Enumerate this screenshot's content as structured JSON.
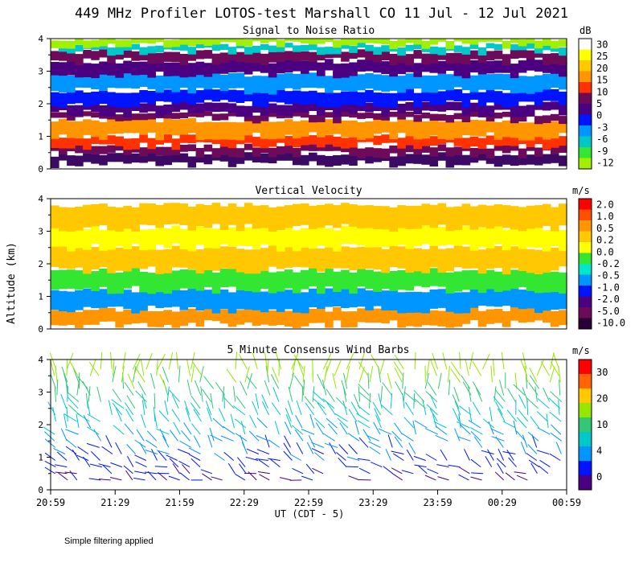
{
  "figure": {
    "title": "449 MHz Profiler LOTOS-test Marshall CO 11 Jul - 12 Jul 2021",
    "footnote": "Simple filtering applied",
    "shared_ylabel": "Altitude (km)"
  },
  "chart_data": [
    {
      "type": "heatmap",
      "title": "Signal to Noise Ratio",
      "xlabel": "",
      "ylabel": "",
      "ylim": [
        0,
        4
      ],
      "yticks": [
        "0",
        "1",
        "2",
        "3",
        "4"
      ],
      "colorbar": {
        "unit": "dB",
        "labels": [
          "30",
          "25",
          "20",
          "15",
          "10",
          "5",
          "0",
          "-3",
          "-6",
          "-9",
          "-12"
        ],
        "colors": [
          "#ffffff",
          "#ffff00",
          "#ffc800",
          "#ff9600",
          "#ff3200",
          "#6e0a5a",
          "#4b0082",
          "#0014ff",
          "#0096ff",
          "#00c8c8",
          "#32e632",
          "#a0f000"
        ]
      },
      "bands": [
        {
          "from": 0.15,
          "to": 0.45,
          "color": "#3c0a64"
        },
        {
          "from": 0.45,
          "to": 0.7,
          "color": "#6e0a5a"
        },
        {
          "from": 0.7,
          "to": 1.0,
          "color": "#ff3200"
        },
        {
          "from": 1.0,
          "to": 1.5,
          "color": "#ff9600"
        },
        {
          "from": 1.5,
          "to": 1.7,
          "color": "#6e0a5a"
        },
        {
          "from": 1.7,
          "to": 2.0,
          "color": "#4b0082"
        },
        {
          "from": 2.0,
          "to": 2.4,
          "color": "#0014ff"
        },
        {
          "from": 2.4,
          "to": 2.9,
          "color": "#0096ff"
        },
        {
          "from": 2.9,
          "to": 3.3,
          "color": "#4b0082"
        },
        {
          "from": 3.3,
          "to": 3.6,
          "color": "#6e0a5a"
        },
        {
          "from": 3.6,
          "to": 3.8,
          "color": "#00c8c8"
        },
        {
          "from": 3.8,
          "to": 4.0,
          "color": "#a0f000"
        }
      ]
    },
    {
      "type": "heatmap",
      "title": "Vertical Velocity",
      "xlabel": "",
      "ylabel": "Altitude (km)",
      "ylim": [
        0,
        4
      ],
      "yticks": [
        "0",
        "1",
        "2",
        "3",
        "4"
      ],
      "colorbar": {
        "unit": "m/s",
        "labels": [
          "2.0",
          "1.0",
          "0.5",
          "0.2",
          "0.0",
          "-0.2",
          "-0.5",
          "-1.0",
          "-2.0",
          "-5.0",
          "-10.0"
        ],
        "colors": [
          "#ff0000",
          "#ff5000",
          "#ff9600",
          "#ffc800",
          "#ffff00",
          "#32e632",
          "#00e6c8",
          "#0096ff",
          "#0014ff",
          "#4b0082",
          "#6e0a5a",
          "#2a0038"
        ]
      },
      "bands": [
        {
          "from": 0.15,
          "to": 0.6,
          "color": "#ff9600"
        },
        {
          "from": 0.6,
          "to": 1.2,
          "color": "#0096ff"
        },
        {
          "from": 1.2,
          "to": 1.8,
          "color": "#32e632"
        },
        {
          "from": 1.8,
          "to": 2.5,
          "color": "#ffc800"
        },
        {
          "from": 2.5,
          "to": 3.1,
          "color": "#ffff00"
        },
        {
          "from": 3.1,
          "to": 3.8,
          "color": "#ffc800"
        }
      ]
    },
    {
      "type": "scatter",
      "title": "5 Minute Consensus Wind Barbs",
      "xlabel": "UT (CDT - 5)",
      "ylabel": "",
      "ylim": [
        0,
        4
      ],
      "yticks": [
        "0",
        "1",
        "2",
        "3",
        "4"
      ],
      "xticks": [
        "20:59",
        "21:29",
        "21:59",
        "22:29",
        "22:59",
        "23:29",
        "23:59",
        "00:29",
        "00:59"
      ],
      "colorbar": {
        "unit": "m/s",
        "labels": [
          "30",
          "20",
          "10",
          "4",
          "0"
        ],
        "colors": [
          "#ff0000",
          "#ff6400",
          "#ffc800",
          "#96e600",
          "#32c878",
          "#00c8c8",
          "#0096ff",
          "#0014ff",
          "#4b0082"
        ]
      }
    }
  ]
}
